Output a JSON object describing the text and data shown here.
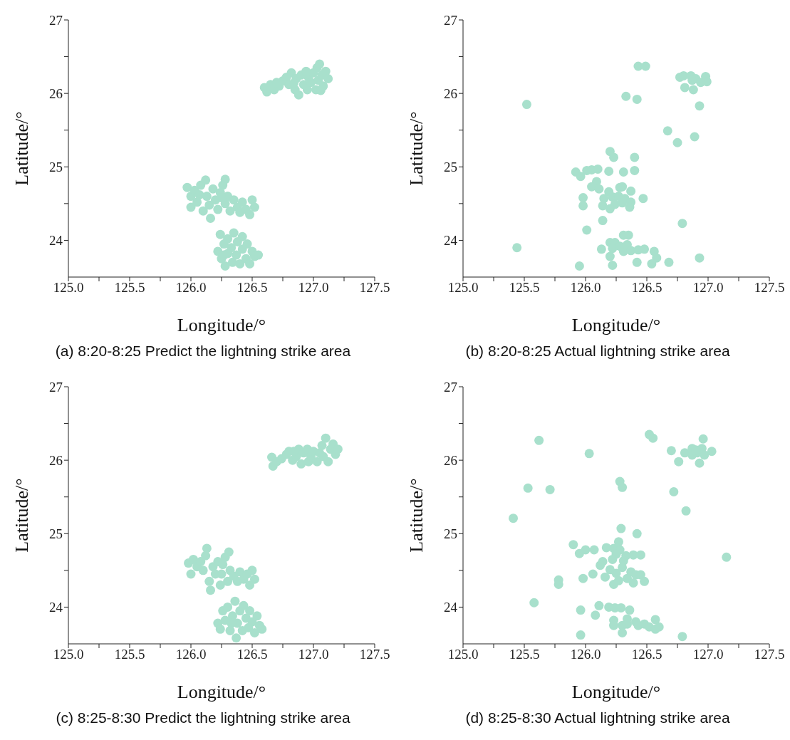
{
  "chart_data": [
    {
      "type": "scatter",
      "title": "(a) 8:20-8:25 Predict the lightning strike area",
      "xlabel": "Longitude/°",
      "ylabel": "Latitude/°",
      "color": "#a8e0cc",
      "marker": "circle",
      "grid": false,
      "legend": false,
      "xlim": [
        125,
        127.5
      ],
      "ylim": [
        23.5,
        27
      ],
      "xticks": [
        {
          "value": 125,
          "label": "125.0"
        },
        {
          "value": 125.25,
          "label": null
        },
        {
          "value": 125.5,
          "label": "125.5"
        },
        {
          "value": 125.75,
          "label": null
        },
        {
          "value": 126,
          "label": "126.0"
        },
        {
          "value": 126.25,
          "label": null
        },
        {
          "value": 126.5,
          "label": "126.5"
        },
        {
          "value": 126.75,
          "label": null
        },
        {
          "value": 127,
          "label": "127.0"
        },
        {
          "value": 127.25,
          "label": null
        },
        {
          "value": 127.5,
          "label": "127.5"
        }
      ],
      "yticks": [
        24,
        {
          "value": 24.5,
          "label": null
        },
        25,
        {
          "value": 25.5,
          "label": null
        },
        26,
        {
          "value": 26.5,
          "label": null
        },
        27
      ],
      "x": [
        126.6,
        126.62,
        126.65,
        126.68,
        126.72,
        126.75,
        126.78,
        126.8,
        126.82,
        126.85,
        126.86,
        126.88,
        126.9,
        126.92,
        126.95,
        126.96,
        126.98,
        127.0,
        127.02,
        127.03,
        127.04,
        127.05,
        127.07,
        127.08,
        127.1,
        127.12,
        126.7,
        126.84,
        126.94,
        127.06,
        125.97,
        126.0,
        126.0,
        126.03,
        126.05,
        126.08,
        126.1,
        126.12,
        126.13,
        126.15,
        126.16,
        126.18,
        126.2,
        126.22,
        126.24,
        126.26,
        126.28,
        126.28,
        126.3,
        126.32,
        126.35,
        126.38,
        126.4,
        126.42,
        126.45,
        126.48,
        126.5,
        126.52,
        126.07,
        126.25,
        126.22,
        126.24,
        126.25,
        126.27,
        126.28,
        126.3,
        126.3,
        126.33,
        126.34,
        126.35,
        126.37,
        126.38,
        126.4,
        126.42,
        126.42,
        126.45,
        126.46,
        126.48,
        126.5,
        126.52,
        126.55,
        126.27
      ],
      "values": [
        26.08,
        26.02,
        26.12,
        26.05,
        26.1,
        26.17,
        26.22,
        26.12,
        26.28,
        26.05,
        26.2,
        25.98,
        26.25,
        26.12,
        26.05,
        26.22,
        26.15,
        26.28,
        26.05,
        26.35,
        26.18,
        26.4,
        26.25,
        26.1,
        26.3,
        26.2,
        26.15,
        26.14,
        26.3,
        26.04,
        24.72,
        24.6,
        24.45,
        24.68,
        24.52,
        24.75,
        24.4,
        24.82,
        24.6,
        24.48,
        24.3,
        24.7,
        24.55,
        24.42,
        24.65,
        24.75,
        24.83,
        24.5,
        24.6,
        24.4,
        24.55,
        24.45,
        24.38,
        24.52,
        24.42,
        24.35,
        24.55,
        24.45,
        24.62,
        24.58,
        23.85,
        24.08,
        23.75,
        23.95,
        23.65,
        24.02,
        23.82,
        23.9,
        23.7,
        24.1,
        23.8,
        23.98,
        23.68,
        24.05,
        23.88,
        23.75,
        23.95,
        23.68,
        23.85,
        23.78,
        23.8,
        23.8
      ]
    },
    {
      "type": "scatter",
      "title": "(b) 8:20-8:25 Actual lightning strike area",
      "xlabel": "Longitude/°",
      "ylabel": "Latitude/°",
      "color": "#a8e0cc",
      "marker": "circle",
      "grid": false,
      "legend": false,
      "xlim": [
        125,
        127.5
      ],
      "ylim": [
        23.5,
        27
      ],
      "xticks": [
        {
          "value": 125,
          "label": "125.0"
        },
        {
          "value": 125.25,
          "label": null
        },
        {
          "value": 125.5,
          "label": "125.5"
        },
        {
          "value": 125.75,
          "label": null
        },
        {
          "value": 126,
          "label": "126.0"
        },
        {
          "value": 126.25,
          "label": null
        },
        {
          "value": 126.5,
          "label": "126.5"
        },
        {
          "value": 126.75,
          "label": null
        },
        {
          "value": 127,
          "label": "127.0"
        },
        {
          "value": 127.25,
          "label": null
        },
        {
          "value": 127.5,
          "label": "127.5"
        }
      ],
      "yticks": [
        24,
        {
          "value": 24.5,
          "label": null
        },
        25,
        {
          "value": 25.5,
          "label": null
        },
        26,
        {
          "value": 26.5,
          "label": null
        },
        27
      ],
      "x": [
        125.52,
        125.44,
        126.43,
        126.49,
        126.33,
        126.42,
        126.77,
        126.8,
        126.86,
        126.9,
        126.98,
        126.99,
        126.94,
        126.81,
        126.88,
        126.87,
        126.93,
        126.67,
        126.75,
        126.89,
        126.2,
        126.23,
        126.4,
        125.92,
        125.96,
        126.01,
        126.05,
        126.1,
        126.19,
        126.31,
        126.4,
        126.09,
        126.05,
        126.11,
        126.19,
        126.28,
        126.3,
        126.37,
        125.98,
        125.98,
        126.15,
        126.14,
        126.22,
        126.27,
        126.32,
        126.3,
        126.24,
        126.2,
        126.37,
        126.36,
        126.47,
        126.14,
        126.79,
        126.01,
        126.31,
        126.35,
        126.2,
        126.24,
        126.13,
        126.22,
        126.28,
        126.31,
        126.34,
        126.37,
        126.43,
        126.48,
        126.56,
        126.58,
        126.2,
        126.42,
        126.54,
        126.68,
        126.93,
        125.95,
        126.22
      ],
      "values": [
        25.85,
        23.9,
        26.37,
        26.37,
        25.96,
        25.92,
        26.22,
        26.24,
        26.24,
        26.2,
        26.23,
        26.16,
        26.15,
        26.08,
        26.05,
        26.18,
        25.83,
        25.49,
        25.33,
        25.41,
        25.21,
        25.13,
        25.13,
        24.93,
        24.87,
        24.95,
        24.96,
        24.97,
        24.94,
        24.93,
        24.95,
        24.8,
        24.73,
        24.7,
        24.66,
        24.72,
        24.73,
        24.67,
        24.58,
        24.47,
        24.57,
        24.47,
        24.59,
        24.6,
        24.57,
        24.51,
        24.49,
        24.43,
        24.52,
        24.45,
        24.57,
        24.27,
        24.23,
        24.14,
        24.07,
        24.07,
        23.97,
        23.97,
        23.88,
        23.89,
        23.92,
        23.85,
        23.94,
        23.86,
        23.87,
        23.88,
        23.85,
        23.76,
        23.78,
        23.7,
        23.68,
        23.7,
        23.76,
        23.65,
        23.66
      ]
    },
    {
      "type": "scatter",
      "title": "(c) 8:25-8:30 Predict the lightning strike area",
      "xlabel": "Longitude/°",
      "ylabel": "Latitude/°",
      "color": "#a8e0cc",
      "marker": "circle",
      "grid": false,
      "legend": false,
      "xlim": [
        125,
        127.5
      ],
      "ylim": [
        23.5,
        27
      ],
      "xticks": [
        {
          "value": 125,
          "label": "125.0"
        },
        {
          "value": 125.25,
          "label": null
        },
        {
          "value": 125.5,
          "label": "125.5"
        },
        {
          "value": 125.75,
          "label": null
        },
        {
          "value": 126,
          "label": "126.0"
        },
        {
          "value": 126.25,
          "label": null
        },
        {
          "value": 126.5,
          "label": "126.5"
        },
        {
          "value": 126.75,
          "label": null
        },
        {
          "value": 127,
          "label": "127.0"
        },
        {
          "value": 127.25,
          "label": null
        },
        {
          "value": 127.5,
          "label": "127.5"
        }
      ],
      "yticks": [
        24,
        {
          "value": 24.5,
          "label": null
        },
        25,
        {
          "value": 25.5,
          "label": null
        },
        26,
        {
          "value": 26.5,
          "label": null
        },
        27
      ],
      "x": [
        126.67,
        126.66,
        126.7,
        126.74,
        126.78,
        126.8,
        126.83,
        126.86,
        126.88,
        126.9,
        126.92,
        126.95,
        126.96,
        126.98,
        127.0,
        127.03,
        127.05,
        127.07,
        127.1,
        127.12,
        127.14,
        127.16,
        127.18,
        127.2,
        127.08,
        126.84,
        125.98,
        126.0,
        126.02,
        126.05,
        126.08,
        126.1,
        126.12,
        126.13,
        126.15,
        126.16,
        126.18,
        126.2,
        126.22,
        126.24,
        126.26,
        126.28,
        126.31,
        126.32,
        126.3,
        126.35,
        126.38,
        126.4,
        126.43,
        126.46,
        126.48,
        126.5,
        126.52,
        126.25,
        126.22,
        126.24,
        126.26,
        126.28,
        126.3,
        126.32,
        126.34,
        126.36,
        126.37,
        126.38,
        126.4,
        126.42,
        126.43,
        126.45,
        126.47,
        126.48,
        126.5,
        126.52,
        126.54,
        126.56,
        126.58,
        126.33
      ],
      "values": [
        25.92,
        26.04,
        25.98,
        26.02,
        26.08,
        26.12,
        26.0,
        26.05,
        26.15,
        25.95,
        26.1,
        26.15,
        25.98,
        26.05,
        26.12,
        25.98,
        26.1,
        26.2,
        26.3,
        25.98,
        26.15,
        26.22,
        26.08,
        26.15,
        26.05,
        26.12,
        24.6,
        24.45,
        24.65,
        24.55,
        24.62,
        24.5,
        24.7,
        24.8,
        24.35,
        24.23,
        24.55,
        24.45,
        24.62,
        24.3,
        24.58,
        24.68,
        24.75,
        24.5,
        24.35,
        24.42,
        24.35,
        24.48,
        24.38,
        24.45,
        24.3,
        24.5,
        24.38,
        24.45,
        23.78,
        23.7,
        23.95,
        23.82,
        24.0,
        23.68,
        23.88,
        24.08,
        23.58,
        23.78,
        23.95,
        23.68,
        24.02,
        23.85,
        23.72,
        23.95,
        23.8,
        23.65,
        23.88,
        23.75,
        23.7,
        23.78
      ]
    },
    {
      "type": "scatter",
      "title": "(d) 8:25-8:30 Actual lightning strike area",
      "xlabel": "Longitude/°",
      "ylabel": "Latitude/°",
      "color": "#a8e0cc",
      "marker": "circle",
      "grid": false,
      "legend": false,
      "xlim": [
        125,
        127.5
      ],
      "ylim": [
        23.5,
        27
      ],
      "xticks": [
        {
          "value": 125,
          "label": "125.0"
        },
        {
          "value": 125.25,
          "label": null
        },
        {
          "value": 125.5,
          "label": "125.5"
        },
        {
          "value": 125.75,
          "label": null
        },
        {
          "value": 126,
          "label": "126.0"
        },
        {
          "value": 126.25,
          "label": null
        },
        {
          "value": 126.5,
          "label": "126.5"
        },
        {
          "value": 126.75,
          "label": null
        },
        {
          "value": 127,
          "label": "127.0"
        },
        {
          "value": 127.25,
          "label": null
        },
        {
          "value": 127.5,
          "label": "127.5"
        }
      ],
      "yticks": [
        24,
        {
          "value": 24.5,
          "label": null
        },
        25,
        {
          "value": 25.5,
          "label": null
        },
        26,
        {
          "value": 26.5,
          "label": null
        },
        27
      ],
      "x": [
        125.62,
        125.53,
        125.71,
        125.41,
        126.03,
        126.52,
        126.55,
        126.7,
        126.76,
        126.81,
        126.87,
        126.87,
        126.91,
        126.93,
        126.95,
        126.96,
        126.97,
        127.03,
        126.9,
        126.28,
        126.3,
        126.72,
        126.82,
        127.15,
        126.29,
        126.42,
        125.9,
        125.95,
        126.0,
        126.07,
        126.17,
        126.23,
        126.27,
        126.28,
        126.25,
        126.33,
        126.39,
        126.45,
        126.22,
        126.14,
        126.12,
        126.31,
        126.3,
        126.2,
        126.25,
        126.06,
        126.16,
        126.37,
        126.41,
        126.45,
        126.48,
        126.34,
        126.39,
        126.27,
        126.23,
        125.98,
        125.78,
        125.78,
        125.58,
        125.96,
        126.11,
        126.19,
        126.24,
        126.29,
        126.36,
        126.08,
        126.23,
        126.23,
        126.3,
        126.34,
        126.34,
        126.41,
        126.43,
        126.48,
        126.52,
        126.57,
        126.57,
        126.6,
        126.3,
        125.96,
        126.79
      ],
      "values": [
        26.27,
        25.62,
        25.6,
        25.21,
        26.09,
        26.35,
        26.3,
        26.13,
        25.98,
        26.1,
        26.16,
        26.07,
        26.1,
        25.96,
        26.16,
        26.29,
        26.07,
        26.12,
        26.14,
        25.71,
        25.63,
        25.57,
        25.31,
        24.68,
        25.07,
        25.0,
        24.85,
        24.73,
        24.78,
        24.78,
        24.81,
        24.8,
        24.89,
        24.78,
        24.72,
        24.7,
        24.71,
        24.71,
        24.65,
        24.62,
        24.57,
        24.63,
        24.54,
        24.51,
        24.46,
        24.45,
        24.41,
        24.48,
        24.44,
        24.44,
        24.35,
        24.39,
        24.33,
        24.36,
        24.31,
        24.39,
        24.37,
        24.31,
        24.06,
        23.96,
        24.02,
        24.0,
        23.99,
        23.99,
        23.96,
        23.89,
        23.82,
        23.75,
        23.75,
        23.84,
        23.77,
        23.8,
        23.75,
        23.77,
        23.73,
        23.83,
        23.7,
        23.73,
        23.65,
        23.62,
        23.6
      ]
    }
  ]
}
